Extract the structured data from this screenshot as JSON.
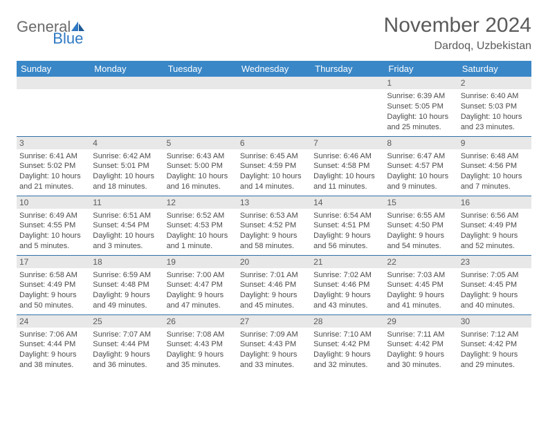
{
  "logo": {
    "word1": "General",
    "word2": "Blue"
  },
  "title": "November 2024",
  "location": "Dardoq, Uzbekistan",
  "colors": {
    "header_bg": "#3a87c7",
    "header_fg": "#ffffff",
    "daynum_bg": "#e8e8e8",
    "row_divider": "#2f6fa8",
    "text": "#4a4a4a",
    "title_text": "#5a5a5a",
    "logo_gray": "#6a6a6a",
    "logo_blue": "#2f78c2"
  },
  "day_headers": [
    "Sunday",
    "Monday",
    "Tuesday",
    "Wednesday",
    "Thursday",
    "Friday",
    "Saturday"
  ],
  "weeks": [
    [
      {
        "empty": true
      },
      {
        "empty": true
      },
      {
        "empty": true
      },
      {
        "empty": true
      },
      {
        "empty": true
      },
      {
        "day": "1",
        "sunrise": "Sunrise: 6:39 AM",
        "sunset": "Sunset: 5:05 PM",
        "daylight": "Daylight: 10 hours and 25 minutes."
      },
      {
        "day": "2",
        "sunrise": "Sunrise: 6:40 AM",
        "sunset": "Sunset: 5:03 PM",
        "daylight": "Daylight: 10 hours and 23 minutes."
      }
    ],
    [
      {
        "day": "3",
        "sunrise": "Sunrise: 6:41 AM",
        "sunset": "Sunset: 5:02 PM",
        "daylight": "Daylight: 10 hours and 21 minutes."
      },
      {
        "day": "4",
        "sunrise": "Sunrise: 6:42 AM",
        "sunset": "Sunset: 5:01 PM",
        "daylight": "Daylight: 10 hours and 18 minutes."
      },
      {
        "day": "5",
        "sunrise": "Sunrise: 6:43 AM",
        "sunset": "Sunset: 5:00 PM",
        "daylight": "Daylight: 10 hours and 16 minutes."
      },
      {
        "day": "6",
        "sunrise": "Sunrise: 6:45 AM",
        "sunset": "Sunset: 4:59 PM",
        "daylight": "Daylight: 10 hours and 14 minutes."
      },
      {
        "day": "7",
        "sunrise": "Sunrise: 6:46 AM",
        "sunset": "Sunset: 4:58 PM",
        "daylight": "Daylight: 10 hours and 11 minutes."
      },
      {
        "day": "8",
        "sunrise": "Sunrise: 6:47 AM",
        "sunset": "Sunset: 4:57 PM",
        "daylight": "Daylight: 10 hours and 9 minutes."
      },
      {
        "day": "9",
        "sunrise": "Sunrise: 6:48 AM",
        "sunset": "Sunset: 4:56 PM",
        "daylight": "Daylight: 10 hours and 7 minutes."
      }
    ],
    [
      {
        "day": "10",
        "sunrise": "Sunrise: 6:49 AM",
        "sunset": "Sunset: 4:55 PM",
        "daylight": "Daylight: 10 hours and 5 minutes."
      },
      {
        "day": "11",
        "sunrise": "Sunrise: 6:51 AM",
        "sunset": "Sunset: 4:54 PM",
        "daylight": "Daylight: 10 hours and 3 minutes."
      },
      {
        "day": "12",
        "sunrise": "Sunrise: 6:52 AM",
        "sunset": "Sunset: 4:53 PM",
        "daylight": "Daylight: 10 hours and 1 minute."
      },
      {
        "day": "13",
        "sunrise": "Sunrise: 6:53 AM",
        "sunset": "Sunset: 4:52 PM",
        "daylight": "Daylight: 9 hours and 58 minutes."
      },
      {
        "day": "14",
        "sunrise": "Sunrise: 6:54 AM",
        "sunset": "Sunset: 4:51 PM",
        "daylight": "Daylight: 9 hours and 56 minutes."
      },
      {
        "day": "15",
        "sunrise": "Sunrise: 6:55 AM",
        "sunset": "Sunset: 4:50 PM",
        "daylight": "Daylight: 9 hours and 54 minutes."
      },
      {
        "day": "16",
        "sunrise": "Sunrise: 6:56 AM",
        "sunset": "Sunset: 4:49 PM",
        "daylight": "Daylight: 9 hours and 52 minutes."
      }
    ],
    [
      {
        "day": "17",
        "sunrise": "Sunrise: 6:58 AM",
        "sunset": "Sunset: 4:49 PM",
        "daylight": "Daylight: 9 hours and 50 minutes."
      },
      {
        "day": "18",
        "sunrise": "Sunrise: 6:59 AM",
        "sunset": "Sunset: 4:48 PM",
        "daylight": "Daylight: 9 hours and 49 minutes."
      },
      {
        "day": "19",
        "sunrise": "Sunrise: 7:00 AM",
        "sunset": "Sunset: 4:47 PM",
        "daylight": "Daylight: 9 hours and 47 minutes."
      },
      {
        "day": "20",
        "sunrise": "Sunrise: 7:01 AM",
        "sunset": "Sunset: 4:46 PM",
        "daylight": "Daylight: 9 hours and 45 minutes."
      },
      {
        "day": "21",
        "sunrise": "Sunrise: 7:02 AM",
        "sunset": "Sunset: 4:46 PM",
        "daylight": "Daylight: 9 hours and 43 minutes."
      },
      {
        "day": "22",
        "sunrise": "Sunrise: 7:03 AM",
        "sunset": "Sunset: 4:45 PM",
        "daylight": "Daylight: 9 hours and 41 minutes."
      },
      {
        "day": "23",
        "sunrise": "Sunrise: 7:05 AM",
        "sunset": "Sunset: 4:45 PM",
        "daylight": "Daylight: 9 hours and 40 minutes."
      }
    ],
    [
      {
        "day": "24",
        "sunrise": "Sunrise: 7:06 AM",
        "sunset": "Sunset: 4:44 PM",
        "daylight": "Daylight: 9 hours and 38 minutes."
      },
      {
        "day": "25",
        "sunrise": "Sunrise: 7:07 AM",
        "sunset": "Sunset: 4:44 PM",
        "daylight": "Daylight: 9 hours and 36 minutes."
      },
      {
        "day": "26",
        "sunrise": "Sunrise: 7:08 AM",
        "sunset": "Sunset: 4:43 PM",
        "daylight": "Daylight: 9 hours and 35 minutes."
      },
      {
        "day": "27",
        "sunrise": "Sunrise: 7:09 AM",
        "sunset": "Sunset: 4:43 PM",
        "daylight": "Daylight: 9 hours and 33 minutes."
      },
      {
        "day": "28",
        "sunrise": "Sunrise: 7:10 AM",
        "sunset": "Sunset: 4:42 PM",
        "daylight": "Daylight: 9 hours and 32 minutes."
      },
      {
        "day": "29",
        "sunrise": "Sunrise: 7:11 AM",
        "sunset": "Sunset: 4:42 PM",
        "daylight": "Daylight: 9 hours and 30 minutes."
      },
      {
        "day": "30",
        "sunrise": "Sunrise: 7:12 AM",
        "sunset": "Sunset: 4:42 PM",
        "daylight": "Daylight: 9 hours and 29 minutes."
      }
    ]
  ]
}
